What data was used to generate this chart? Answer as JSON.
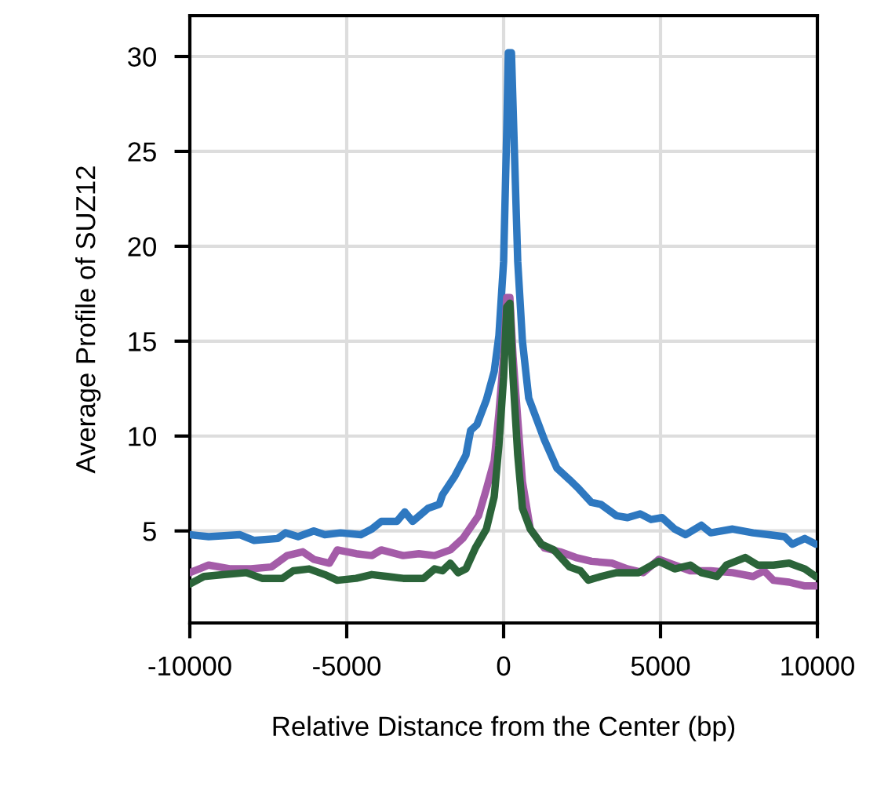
{
  "chart_data": {
    "type": "line",
    "xlabel": "Relative Distance from the Center (bp)",
    "ylabel": "Average Profile of SUZ12",
    "xlim": [
      -10000,
      10000
    ],
    "ylim": [
      0.15,
      32.15
    ],
    "xticks": [
      -10000,
      -5000,
      0,
      5000,
      10000
    ],
    "yticks": [
      5,
      10,
      15,
      20,
      25,
      30
    ],
    "grid": true,
    "line_style": "solid",
    "marker": "none",
    "series": [
      {
        "color": "#2e78c0",
        "x": [
          -10000,
          -9400,
          -8400,
          -7950,
          -7200,
          -6950,
          -6550,
          -6050,
          -5700,
          -5200,
          -4550,
          -4200,
          -3900,
          -3400,
          -3150,
          -2900,
          -2400,
          -2050,
          -1950,
          -1550,
          -1200,
          -1050,
          -850,
          -550,
          -300,
          -150,
          0,
          100,
          150,
          250,
          350,
          450,
          600,
          800,
          1300,
          1700,
          2100,
          2350,
          2800,
          3100,
          3600,
          3950,
          4350,
          4700,
          5050,
          5450,
          5800,
          6300,
          6600,
          7300,
          7950,
          8450,
          8950,
          9200,
          9600,
          9950
        ],
        "values": [
          4.8,
          4.7,
          4.8,
          4.5,
          4.6,
          4.9,
          4.7,
          5.0,
          4.8,
          4.9,
          4.8,
          5.1,
          5.5,
          5.5,
          6.0,
          5.5,
          6.2,
          6.4,
          6.9,
          7.9,
          9.0,
          10.3,
          10.6,
          11.9,
          13.4,
          15.3,
          19.2,
          26.1,
          30.2,
          30.2,
          24.7,
          19.2,
          15.0,
          12.0,
          9.8,
          8.3,
          7.7,
          7.3,
          6.5,
          6.4,
          5.8,
          5.7,
          5.9,
          5.6,
          5.7,
          5.1,
          4.8,
          5.3,
          4.9,
          5.1,
          4.9,
          4.8,
          4.7,
          4.3,
          4.6,
          4.3
        ]
      },
      {
        "color": "#a45ca8",
        "x": [
          -10000,
          -9400,
          -8700,
          -8050,
          -7400,
          -6900,
          -6400,
          -6050,
          -5550,
          -5300,
          -4700,
          -4200,
          -3900,
          -3200,
          -2700,
          -2200,
          -1700,
          -1300,
          -1050,
          -800,
          -550,
          -300,
          -150,
          0,
          100,
          200,
          300,
          450,
          600,
          850,
          1300,
          1800,
          2300,
          2800,
          3450,
          3950,
          4450,
          4950,
          5450,
          5950,
          6600,
          7300,
          7950,
          8300,
          8600,
          9100,
          9600,
          9950
        ],
        "values": [
          2.8,
          3.2,
          3.0,
          3.0,
          3.1,
          3.7,
          3.9,
          3.5,
          3.3,
          4.0,
          3.8,
          3.7,
          4.0,
          3.7,
          3.8,
          3.7,
          4.0,
          4.6,
          5.2,
          5.8,
          7.2,
          8.7,
          11.2,
          14.2,
          17.3,
          17.3,
          14.2,
          10.9,
          7.6,
          5.1,
          4.1,
          3.9,
          3.6,
          3.4,
          3.3,
          3.0,
          2.8,
          3.5,
          3.2,
          2.9,
          2.9,
          2.8,
          2.6,
          2.9,
          2.4,
          2.3,
          2.1,
          2.1
        ]
      },
      {
        "color": "#2b6439",
        "x": [
          -10000,
          -9550,
          -8900,
          -8200,
          -7700,
          -7050,
          -6700,
          -6200,
          -5700,
          -5300,
          -4700,
          -4200,
          -3700,
          -3200,
          -2550,
          -2200,
          -1950,
          -1700,
          -1450,
          -1200,
          -900,
          -550,
          -300,
          -150,
          0,
          100,
          200,
          300,
          450,
          600,
          850,
          1200,
          1600,
          2100,
          2450,
          2700,
          3100,
          3600,
          4300,
          4950,
          5450,
          5950,
          6300,
          6800,
          7100,
          7700,
          8100,
          8600,
          9100,
          9600,
          9950
        ],
        "values": [
          2.2,
          2.6,
          2.7,
          2.8,
          2.5,
          2.5,
          2.9,
          3.0,
          2.7,
          2.4,
          2.5,
          2.7,
          2.6,
          2.5,
          2.5,
          3.0,
          2.9,
          3.3,
          2.8,
          3.0,
          4.1,
          5.1,
          6.8,
          9.5,
          13.1,
          16.8,
          17.0,
          13.1,
          9.0,
          6.2,
          5.1,
          4.3,
          4.0,
          3.1,
          2.9,
          2.4,
          2.6,
          2.8,
          2.8,
          3.4,
          3.0,
          3.2,
          2.8,
          2.6,
          3.2,
          3.6,
          3.2,
          3.2,
          3.3,
          3.0,
          2.6
        ]
      }
    ]
  }
}
